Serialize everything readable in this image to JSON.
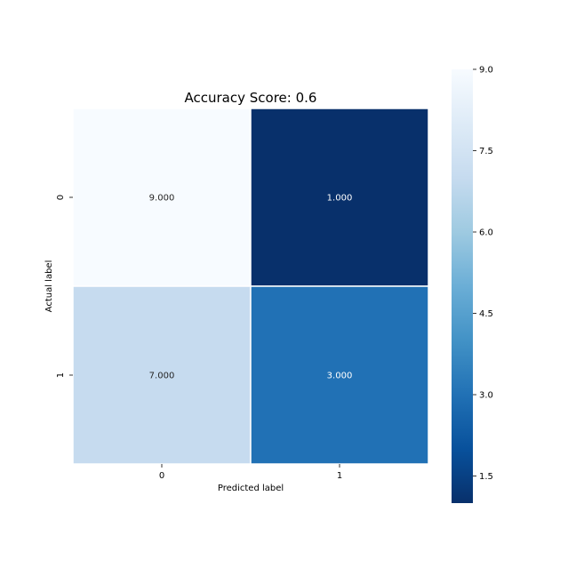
{
  "chart_data": {
    "type": "heatmap",
    "title": "Accuracy Score: 0.6",
    "xlabel": "Predicted label",
    "ylabel": "Actual label",
    "x_categories": [
      "0",
      "1"
    ],
    "y_categories": [
      "0",
      "1"
    ],
    "values": [
      [
        9,
        1
      ],
      [
        7,
        3
      ]
    ],
    "cell_labels": [
      [
        "9.000",
        "1.000"
      ],
      [
        "7.000",
        "3.000"
      ]
    ],
    "colormap": "Blues_r",
    "color_low": "#08306b",
    "color_high": "#f7fbff",
    "colorbar": {
      "range": [
        1,
        9
      ],
      "ticks": [
        1.5,
        3.0,
        4.5,
        6.0,
        7.5,
        9.0
      ],
      "tick_labels": [
        "1.5",
        "3.0",
        "4.5",
        "6.0",
        "7.5",
        "9.0"
      ],
      "placement": "right"
    },
    "grid": false,
    "cell_separator_color": "#ffffff"
  }
}
